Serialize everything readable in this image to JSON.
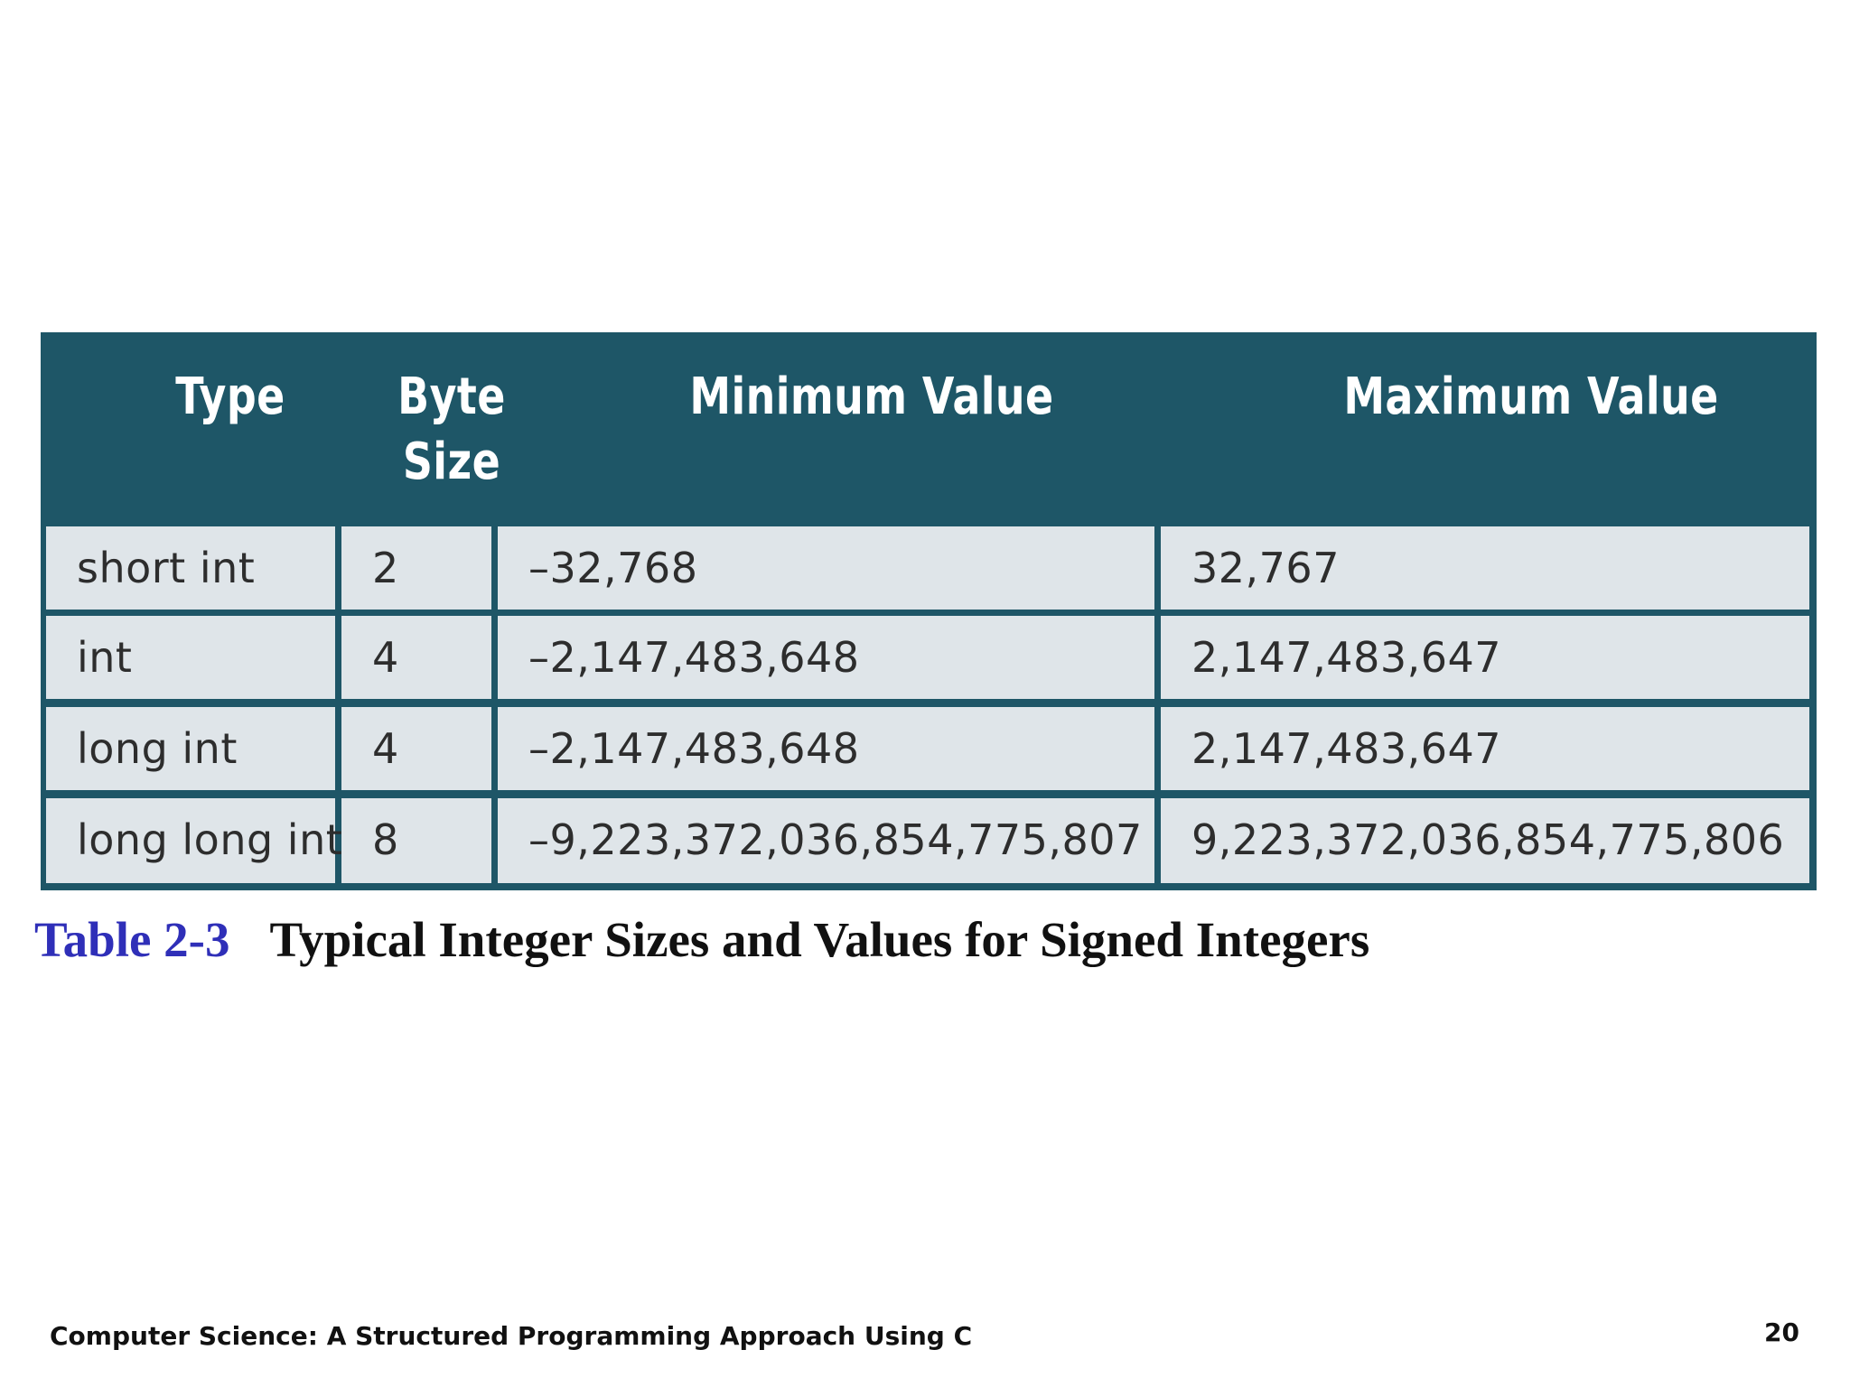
{
  "table": {
    "headers": {
      "type": "Type",
      "byte_size_line1": "Byte",
      "byte_size_line2": "Size",
      "min": "Minimum Value",
      "max": "Maximum Value"
    },
    "rows": [
      {
        "type": "short int",
        "bytes": "2",
        "min": "–32,768",
        "max": "32,767"
      },
      {
        "type": "int",
        "bytes": "4",
        "min": "–2,147,483,648",
        "max": "2,147,483,647"
      },
      {
        "type": "long int",
        "bytes": "4",
        "min": "–2,147,483,648",
        "max": "2,147,483,647"
      },
      {
        "type": "long long int",
        "bytes": "8",
        "min": "–9,223,372,036,854,775,807",
        "max": "9,223,372,036,854,775,806"
      }
    ]
  },
  "caption": {
    "number": "Table  2-3",
    "title": "Typical Integer Sizes and Values for Signed Integers"
  },
  "footer": {
    "book_title": "Computer Science: A Structured Programming Approach Using C",
    "page_number": "20"
  },
  "colors": {
    "header_bg": "#1e5667",
    "cell_bg": "#dfe5e9",
    "caption_number": "#2f2fb8"
  }
}
